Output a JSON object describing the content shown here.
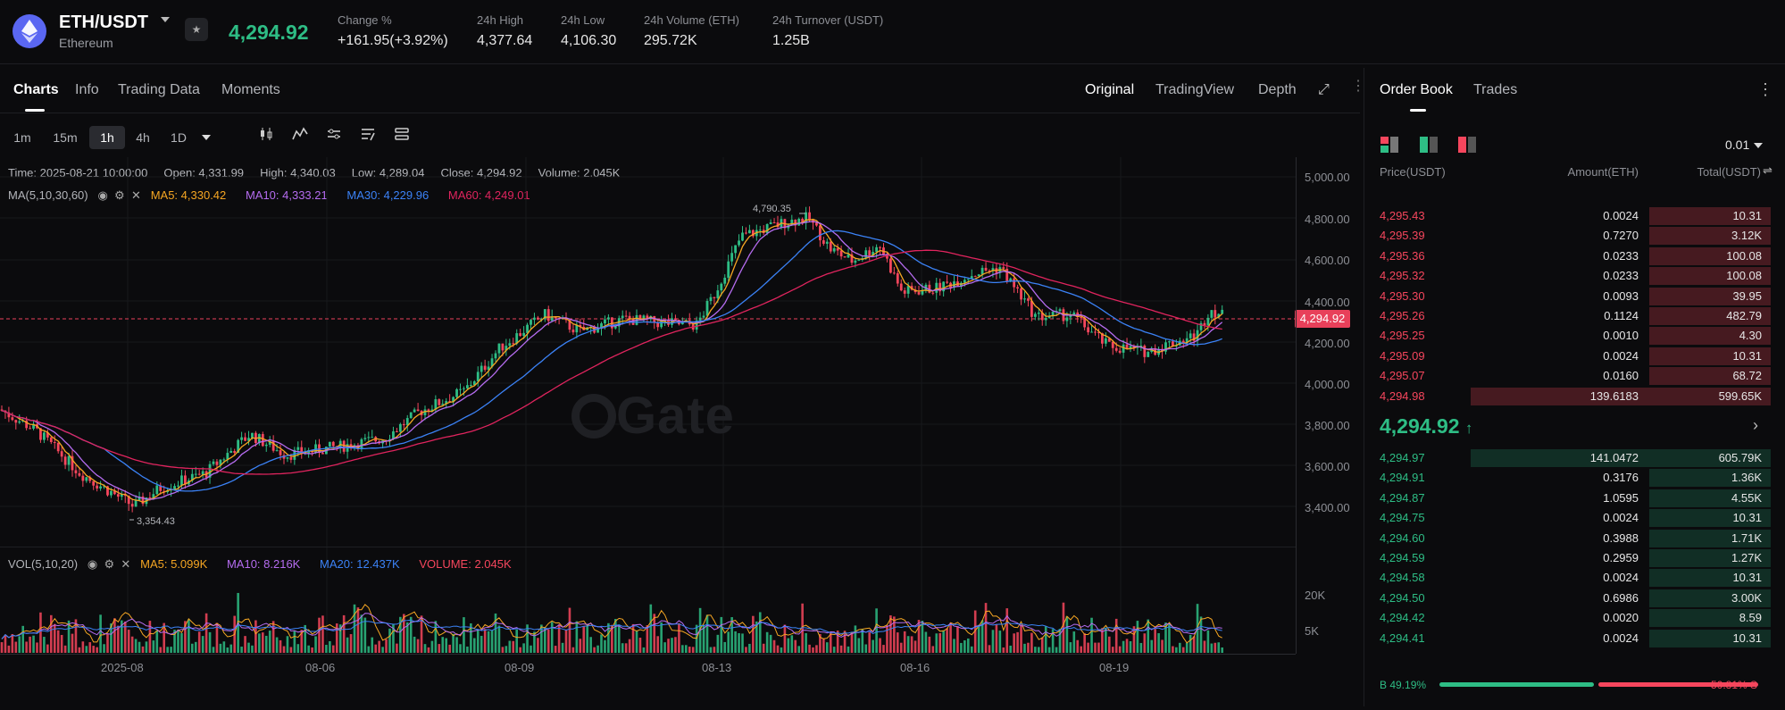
{
  "header": {
    "symbol": "ETH/USDT",
    "name": "Ethereum",
    "last_price": "4,294.92",
    "stats": [
      {
        "label": "Change %",
        "value": "+161.95(+3.92%)",
        "color": "#2ebd85"
      },
      {
        "label": "24h High",
        "value": "4,377.64"
      },
      {
        "label": "24h Low",
        "value": "4,106.30"
      },
      {
        "label": "24h Volume (ETH)",
        "value": "295.72K"
      },
      {
        "label": "24h Turnover (USDT)",
        "value": "1.25B"
      }
    ]
  },
  "chart_tabs": [
    "Charts",
    "Info",
    "Trading Data",
    "Moments"
  ],
  "view_tabs": [
    "Original",
    "TradingView",
    "Depth"
  ],
  "timeframes": [
    "1m",
    "15m",
    "1h",
    "4h",
    "1D"
  ],
  "ohlc": {
    "time": "Time: 2025-08-21 10:00:00",
    "open": "Open: 4,331.99",
    "high": "High: 4,340.03",
    "low": "Low: 4,289.04",
    "close": "Close: 4,294.92",
    "volume": "Volume: 2.045K"
  },
  "ma": {
    "label": "MA(5,10,30,60)",
    "ma5": "MA5: 4,330.42",
    "ma10": "MA10: 4,333.21",
    "ma30": "MA30: 4,229.96",
    "ma60": "MA60: 4,249.01"
  },
  "vol": {
    "label": "VOL(5,10,20)",
    "ma5": "MA5: 5.099K",
    "ma10": "MA10: 8.216K",
    "ma20": "MA20: 12.437K",
    "volume": "VOLUME: 2.045K"
  },
  "price_axis": [
    "5,000.00",
    "4,800.00",
    "4,600.00",
    "4,400.00",
    "4,200.00",
    "4,000.00",
    "3,800.00",
    "3,600.00",
    "3,400.00"
  ],
  "volume_axis": [
    "20K",
    "5K"
  ],
  "date_axis": [
    "2025-08",
    "08-06",
    "08-09",
    "08-13",
    "08-16",
    "08-19"
  ],
  "current_price_tag": "4,294.92",
  "high_marker": "4,790.35",
  "low_marker": "3,354.43",
  "watermark": "Gate",
  "colors": {
    "up": "#2ebd85",
    "down": "#f6465d",
    "ma5": "#f5a623",
    "ma10": "#b56cf0",
    "ma30": "#3b82f6",
    "ma60": "#e0245e"
  },
  "order_book": {
    "tabs": [
      "Order Book",
      "Trades"
    ],
    "precision": "0.01",
    "headers": [
      "Price(USDT)",
      "Amount(ETH)",
      "Total(USDT)"
    ],
    "asks": [
      {
        "price": "4,295.43",
        "amount": "0.0024",
        "total": "10.31",
        "depth": 0.3
      },
      {
        "price": "4,295.39",
        "amount": "0.7270",
        "total": "3.12K",
        "depth": 0.3
      },
      {
        "price": "4,295.36",
        "amount": "0.0233",
        "total": "100.08",
        "depth": 0.3
      },
      {
        "price": "4,295.32",
        "amount": "0.0233",
        "total": "100.08",
        "depth": 0.3
      },
      {
        "price": "4,295.30",
        "amount": "0.0093",
        "total": "39.95",
        "depth": 0.3
      },
      {
        "price": "4,295.26",
        "amount": "0.1124",
        "total": "482.79",
        "depth": 0.3
      },
      {
        "price": "4,295.25",
        "amount": "0.0010",
        "total": "4.30",
        "depth": 0.3
      },
      {
        "price": "4,295.09",
        "amount": "0.0024",
        "total": "10.31",
        "depth": 0.3
      },
      {
        "price": "4,295.07",
        "amount": "0.0160",
        "total": "68.72",
        "depth": 0.3
      },
      {
        "price": "4,294.98",
        "amount": "139.6183",
        "total": "599.65K",
        "depth": 0.3
      }
    ],
    "mid_price": "4,294.92",
    "bids": [
      {
        "price": "4,294.97",
        "amount": "141.0472",
        "total": "605.79K",
        "depth": 0.3
      },
      {
        "price": "4,294.91",
        "amount": "0.3176",
        "total": "1.36K",
        "depth": 0.3
      },
      {
        "price": "4,294.87",
        "amount": "1.0595",
        "total": "4.55K",
        "depth": 0.3
      },
      {
        "price": "4,294.75",
        "amount": "0.0024",
        "total": "10.31",
        "depth": 0.3
      },
      {
        "price": "4,294.60",
        "amount": "0.3988",
        "total": "1.71K",
        "depth": 0.3
      },
      {
        "price": "4,294.59",
        "amount": "0.2959",
        "total": "1.27K",
        "depth": 0.3
      },
      {
        "price": "4,294.58",
        "amount": "0.0024",
        "total": "10.31",
        "depth": 0.3
      },
      {
        "price": "4,294.50",
        "amount": "0.6986",
        "total": "3.00K",
        "depth": 0.3
      },
      {
        "price": "4,294.42",
        "amount": "0.0020",
        "total": "8.59",
        "depth": 0.3
      },
      {
        "price": "4,294.41",
        "amount": "0.0024",
        "total": "10.31",
        "depth": 0.3
      }
    ],
    "buy_ratio": "B 49.19%",
    "sell_ratio": "50.81% S",
    "buy_fraction": 0.4919
  }
}
